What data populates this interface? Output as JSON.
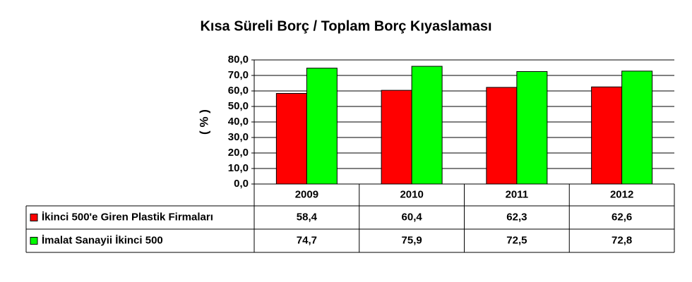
{
  "chart_data": {
    "type": "bar",
    "title": "Kısa Süreli Borç / Toplam  Borç Kıyaslaması",
    "y_label": "( % )",
    "categories": [
      "2009",
      "2010",
      "2011",
      "2012"
    ],
    "series": [
      {
        "name": "İkinci 500'e Giren Plastik Firmaları",
        "color": "#ff0000",
        "values": [
          58.4,
          60.4,
          62.3,
          62.6
        ],
        "value_labels": [
          "58,4",
          "60,4",
          "62,3",
          "62,6"
        ]
      },
      {
        "name": "İmalat Sanayii İkinci 500",
        "color": "#00ff00",
        "values": [
          74.7,
          75.9,
          72.5,
          72.8
        ],
        "value_labels": [
          "74,7",
          "75,9",
          "72,5",
          "72,8"
        ]
      }
    ],
    "ylim": [
      0,
      80
    ],
    "yticks": [
      {
        "value": 0,
        "label": "0,0"
      },
      {
        "value": 10,
        "label": "10,0"
      },
      {
        "value": 20,
        "label": "20,0"
      },
      {
        "value": 30,
        "label": "30,0"
      },
      {
        "value": 40,
        "label": "40,0"
      },
      {
        "value": 50,
        "label": "50,0"
      },
      {
        "value": 60,
        "label": "60,0"
      },
      {
        "value": 70,
        "label": "70,0"
      },
      {
        "value": 80,
        "label": "80,0"
      }
    ],
    "grid": true
  }
}
